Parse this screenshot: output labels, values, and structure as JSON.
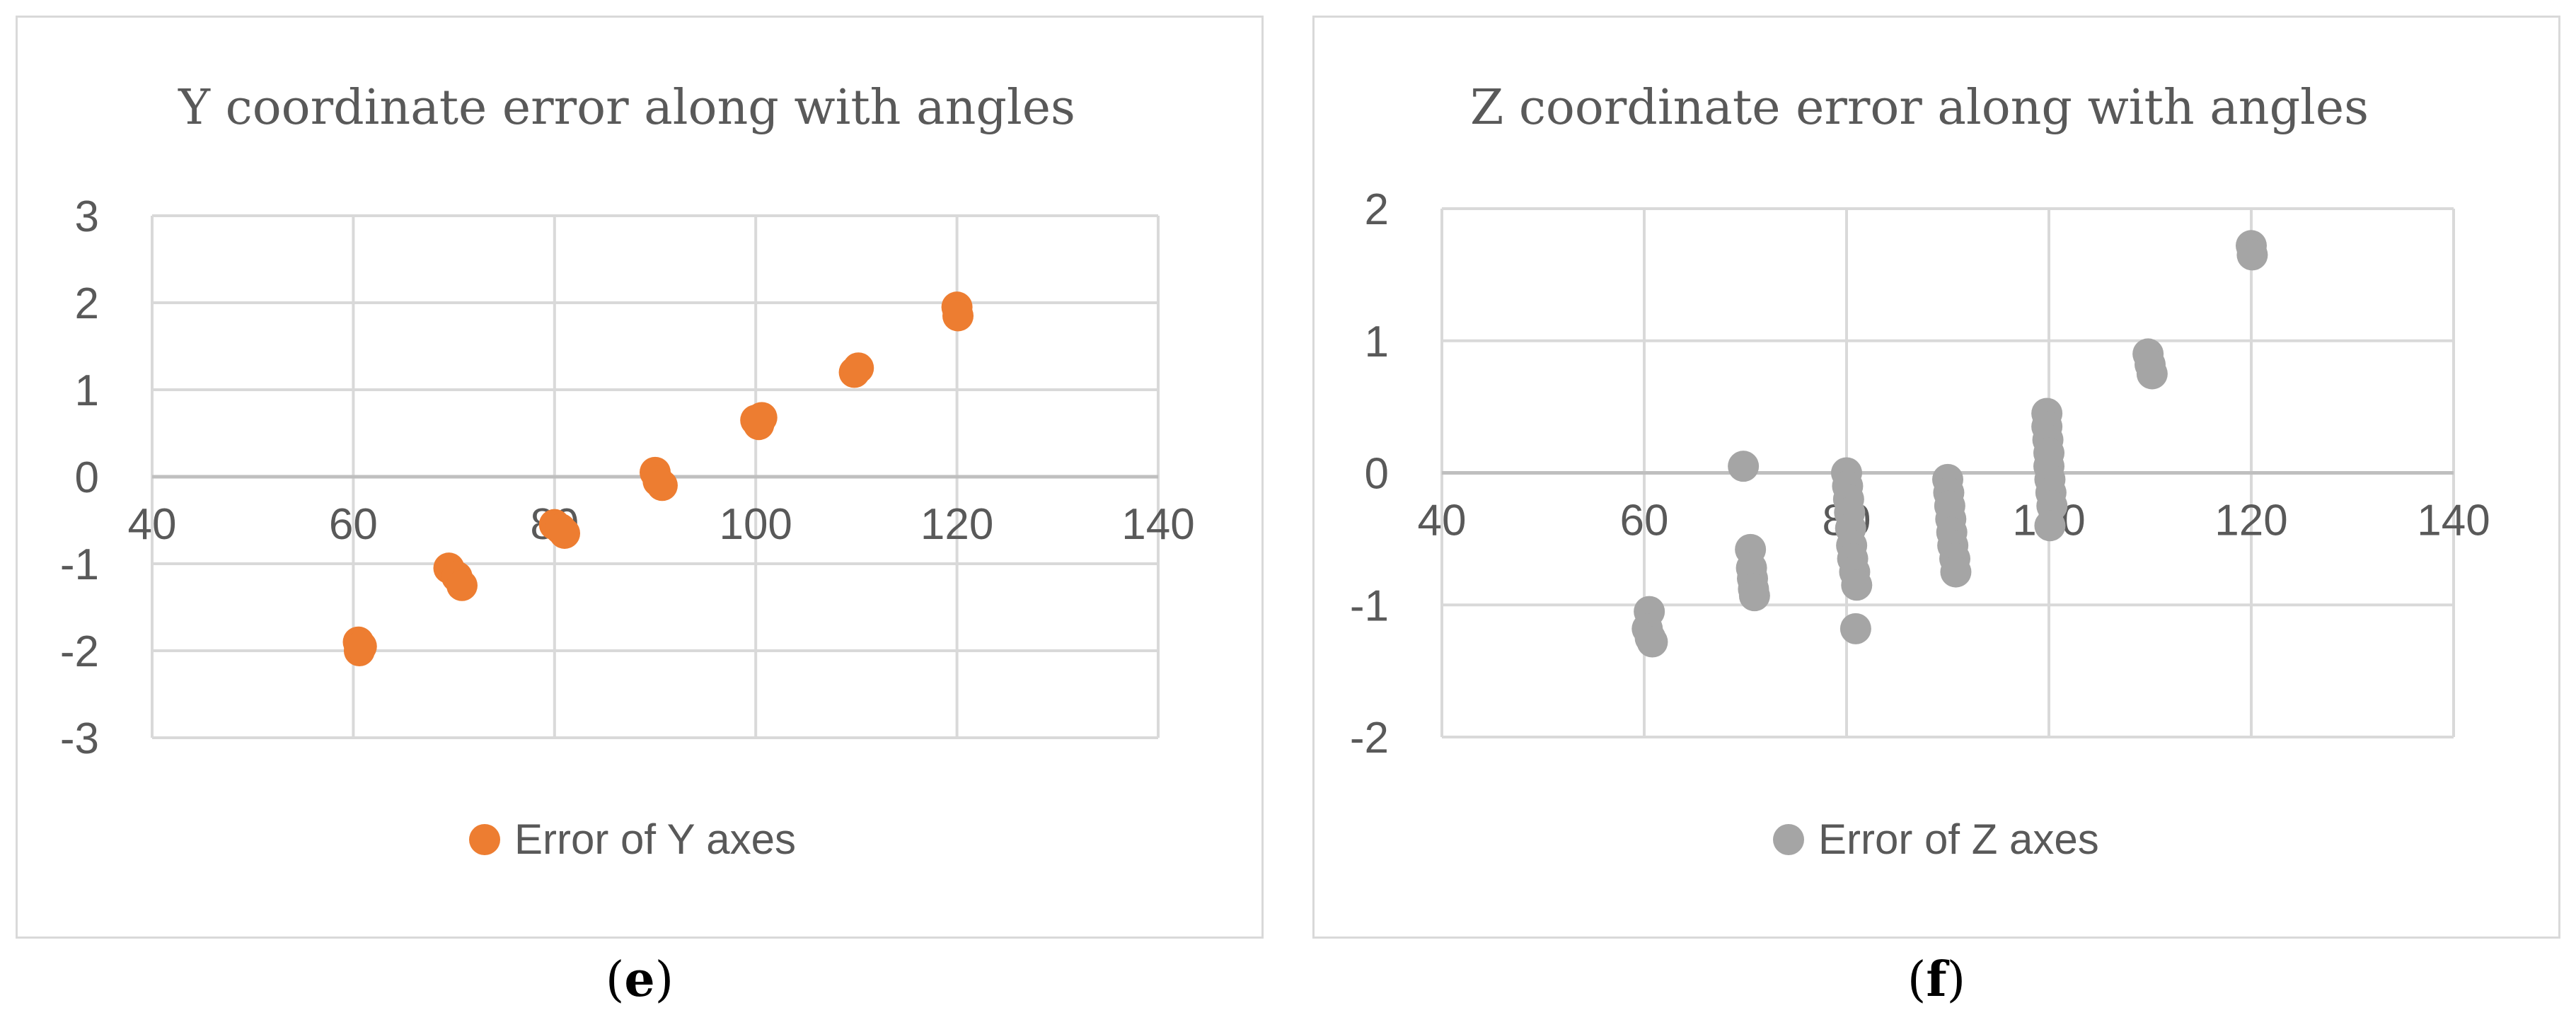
{
  "chart_data": [
    {
      "type": "scatter",
      "title": "Y coordinate error along with angles",
      "xlim": [
        40,
        140
      ],
      "ylim": [
        -3,
        3
      ],
      "x_ticks": [
        "40",
        "60",
        "80",
        "100",
        "120",
        "140"
      ],
      "y_ticks": [
        "3",
        "2",
        "1",
        "0",
        "-1",
        "-2",
        "-3"
      ],
      "grid": true,
      "legend_position": "bottom",
      "color": "#ED7D31",
      "series": [
        {
          "name": "Error of Y axes",
          "points": [
            [
              60.5,
              -1.9
            ],
            [
              60.6,
              -2.0
            ],
            [
              60.8,
              -1.95
            ],
            [
              69.5,
              -1.05
            ],
            [
              70.3,
              -1.15
            ],
            [
              70.8,
              -1.25
            ],
            [
              80.0,
              -0.55
            ],
            [
              80.6,
              -0.6
            ],
            [
              81.0,
              -0.65
            ],
            [
              90.0,
              0.05
            ],
            [
              90.3,
              -0.05
            ],
            [
              90.7,
              -0.1
            ],
            [
              100.0,
              0.65
            ],
            [
              100.3,
              0.6
            ],
            [
              100.6,
              0.68
            ],
            [
              109.8,
              1.2
            ],
            [
              110.2,
              1.25
            ],
            [
              120.0,
              1.95
            ],
            [
              120.1,
              1.85
            ]
          ]
        }
      ],
      "caption_letter": "e"
    },
    {
      "type": "scatter",
      "title": "Z coordinate error along with angles",
      "xlim": [
        40,
        140
      ],
      "ylim": [
        -2,
        2
      ],
      "x_ticks": [
        "40",
        "60",
        "80",
        "100",
        "120",
        "140"
      ],
      "y_ticks": [
        "2",
        "1",
        "0",
        "-1",
        "-2"
      ],
      "grid": true,
      "legend_position": "bottom",
      "color": "#A5A5A5",
      "series": [
        {
          "name": "Error of Z axes",
          "points": [
            [
              60.5,
              -1.05
            ],
            [
              60.3,
              -1.18
            ],
            [
              60.6,
              -1.25
            ],
            [
              60.8,
              -1.28
            ],
            [
              69.8,
              0.05
            ],
            [
              70.5,
              -0.58
            ],
            [
              70.6,
              -0.72
            ],
            [
              70.7,
              -0.8
            ],
            [
              70.8,
              -0.88
            ],
            [
              70.9,
              -0.93
            ],
            [
              80.0,
              0.0
            ],
            [
              80.1,
              -0.1
            ],
            [
              80.2,
              -0.2
            ],
            [
              80.3,
              -0.3
            ],
            [
              80.4,
              -0.42
            ],
            [
              80.5,
              -0.55
            ],
            [
              80.6,
              -0.65
            ],
            [
              80.8,
              -0.75
            ],
            [
              81.0,
              -0.85
            ],
            [
              80.9,
              -1.18
            ],
            [
              90.0,
              -0.05
            ],
            [
              90.1,
              -0.15
            ],
            [
              90.2,
              -0.25
            ],
            [
              90.3,
              -0.35
            ],
            [
              90.4,
              -0.45
            ],
            [
              90.5,
              -0.55
            ],
            [
              90.7,
              -0.65
            ],
            [
              90.8,
              -0.75
            ],
            [
              99.8,
              0.45
            ],
            [
              99.8,
              0.35
            ],
            [
              99.9,
              0.25
            ],
            [
              100.0,
              0.15
            ],
            [
              100.0,
              0.05
            ],
            [
              100.1,
              -0.05
            ],
            [
              100.2,
              -0.15
            ],
            [
              100.3,
              -0.25
            ],
            [
              100.1,
              -0.4
            ],
            [
              109.8,
              0.9
            ],
            [
              110.0,
              0.82
            ],
            [
              110.2,
              0.75
            ],
            [
              120.0,
              1.72
            ],
            [
              120.1,
              1.65
            ]
          ]
        }
      ],
      "caption_letter": "f"
    }
  ]
}
